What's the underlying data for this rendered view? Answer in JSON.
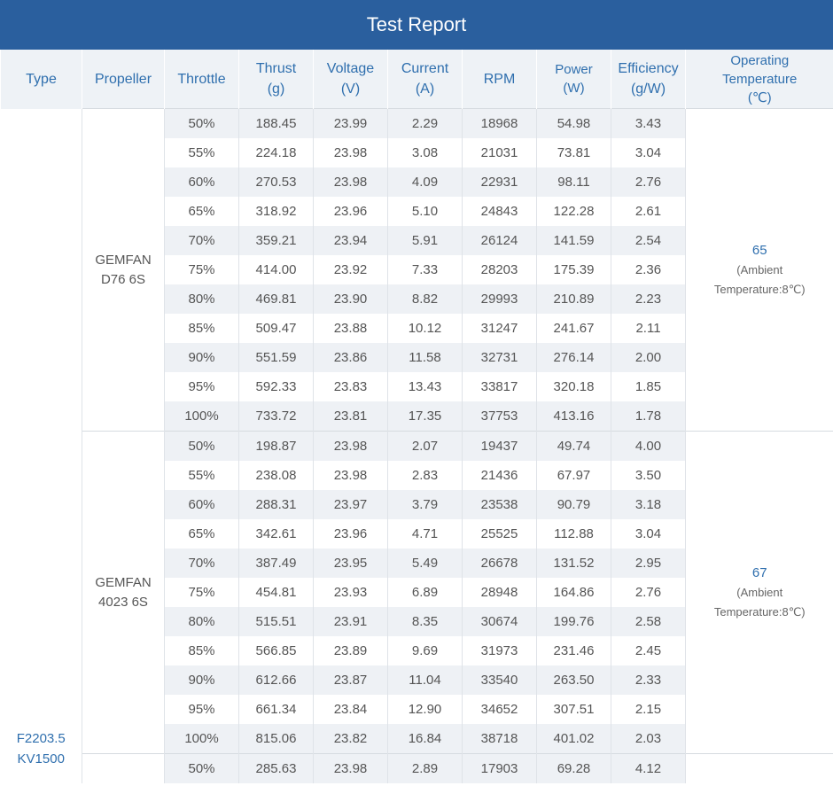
{
  "title": "Test Report",
  "headers": {
    "type": "Type",
    "propeller": "Propeller",
    "throttle": "Throttle",
    "thrust": [
      "Thrust",
      "(g)"
    ],
    "voltage": [
      "Voltage",
      "(V)"
    ],
    "current": [
      "Current",
      "(A)"
    ],
    "rpm": "RPM",
    "power": [
      "Power",
      "(W)"
    ],
    "efficiency": [
      "Efficiency",
      "(g/W)"
    ],
    "temperature": [
      "Operating",
      "Temperature",
      "(℃)"
    ]
  },
  "motor_type": [
    "F2203.5",
    "KV1500"
  ],
  "groups": [
    {
      "propeller": [
        "GEMFAN",
        "D76  6S"
      ],
      "temperature": "65",
      "ambient": [
        "(Ambient",
        "Temperature:8℃)"
      ],
      "rows": [
        [
          "50%",
          "188.45",
          "23.99",
          "2.29",
          "18968",
          "54.98",
          "3.43"
        ],
        [
          "55%",
          "224.18",
          "23.98",
          "3.08",
          "21031",
          "73.81",
          "3.04"
        ],
        [
          "60%",
          "270.53",
          "23.98",
          "4.09",
          "22931",
          "98.11",
          "2.76"
        ],
        [
          "65%",
          "318.92",
          "23.96",
          "5.10",
          "24843",
          "122.28",
          "2.61"
        ],
        [
          "70%",
          "359.21",
          "23.94",
          "5.91",
          "26124",
          "141.59",
          "2.54"
        ],
        [
          "75%",
          "414.00",
          "23.92",
          "7.33",
          "28203",
          "175.39",
          "2.36"
        ],
        [
          "80%",
          "469.81",
          "23.90",
          "8.82",
          "29993",
          "210.89",
          "2.23"
        ],
        [
          "85%",
          "509.47",
          "23.88",
          "10.12",
          "31247",
          "241.67",
          "2.11"
        ],
        [
          "90%",
          "551.59",
          "23.86",
          "11.58",
          "32731",
          "276.14",
          "2.00"
        ],
        [
          "95%",
          "592.33",
          "23.83",
          "13.43",
          "33817",
          "320.18",
          "1.85"
        ],
        [
          "100%",
          "733.72",
          "23.81",
          "17.35",
          "37753",
          "413.16",
          "1.78"
        ]
      ]
    },
    {
      "propeller": [
        "GEMFAN",
        "4023 6S"
      ],
      "temperature": "67",
      "ambient": [
        "(Ambient",
        "Temperature:8℃)"
      ],
      "rows": [
        [
          "50%",
          "198.87",
          "23.98",
          "2.07",
          "19437",
          "49.74",
          "4.00"
        ],
        [
          "55%",
          "238.08",
          "23.98",
          "2.83",
          "21436",
          "67.97",
          "3.50"
        ],
        [
          "60%",
          "288.31",
          "23.97",
          "3.79",
          "23538",
          "90.79",
          "3.18"
        ],
        [
          "65%",
          "342.61",
          "23.96",
          "4.71",
          "25525",
          "112.88",
          "3.04"
        ],
        [
          "70%",
          "387.49",
          "23.95",
          "5.49",
          "26678",
          "131.52",
          "2.95"
        ],
        [
          "75%",
          "454.81",
          "23.93",
          "6.89",
          "28948",
          "164.86",
          "2.76"
        ],
        [
          "80%",
          "515.51",
          "23.91",
          "8.35",
          "30674",
          "199.76",
          "2.58"
        ],
        [
          "85%",
          "566.85",
          "23.89",
          "9.69",
          "31973",
          "231.46",
          "2.45"
        ],
        [
          "90%",
          "612.66",
          "23.87",
          "11.04",
          "33540",
          "263.50",
          "2.33"
        ],
        [
          "95%",
          "661.34",
          "23.84",
          "12.90",
          "34652",
          "307.51",
          "2.15"
        ],
        [
          "100%",
          "815.06",
          "23.82",
          "16.84",
          "38718",
          "401.02",
          "2.03"
        ]
      ]
    },
    {
      "propeller": [
        "",
        ""
      ],
      "temperature": "",
      "ambient": [
        "",
        ""
      ],
      "rows": [
        [
          "50%",
          "285.63",
          "23.98",
          "2.89",
          "17903",
          "69.28",
          "4.12"
        ]
      ]
    }
  ],
  "colors": {
    "header_bg": "#2a5f9e",
    "accent": "#2f6fae",
    "row_stripe": "#eef1f5"
  }
}
